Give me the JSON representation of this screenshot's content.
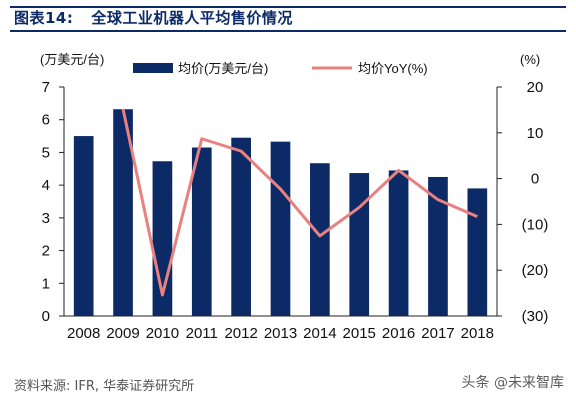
{
  "header": {
    "figure_label": "图表14:",
    "title_text": "全球工业机器人平均售价情况"
  },
  "footer": {
    "source": "资料来源: IFR, 华泰证券研究所",
    "watermark": "头条 @未来智库"
  },
  "colors": {
    "bars": "#0c2a66",
    "line": "#e8817f",
    "title": "#0c2a66",
    "axis": "#222222"
  },
  "chart_data": {
    "type": "bar",
    "categories": [
      "2008",
      "2009",
      "2010",
      "2011",
      "2012",
      "2013",
      "2014",
      "2015",
      "2016",
      "2017",
      "2018"
    ],
    "series": [
      {
        "name": "均价(万美元/台)",
        "type": "bar",
        "axis": "left",
        "values": [
          5.5,
          6.32,
          4.73,
          5.15,
          5.45,
          5.33,
          4.67,
          4.37,
          4.45,
          4.25,
          3.9
        ]
      },
      {
        "name": "均价YoY(%)",
        "type": "line",
        "axis": "right",
        "values": [
          null,
          15.2,
          -25.4,
          8.7,
          6.0,
          -2.3,
          -12.5,
          -6.3,
          1.8,
          -4.6,
          -8.3
        ]
      }
    ],
    "y_left": {
      "label": "(万美元/台)",
      "ylim": [
        0,
        7
      ],
      "ticks": [
        0,
        1,
        2,
        3,
        4,
        5,
        6,
        7
      ],
      "tick_labels": [
        "0",
        "1",
        "2",
        "3",
        "4",
        "5",
        "6",
        "7"
      ]
    },
    "y_right": {
      "label": "(%)",
      "ylim": [
        -30,
        20
      ],
      "ticks": [
        20,
        10,
        0,
        -10,
        -20,
        -30
      ],
      "tick_labels": [
        "20",
        "10",
        "0",
        "(10)",
        "(20)",
        "(30)"
      ]
    },
    "legend_placement": "top-center",
    "grid": false
  }
}
